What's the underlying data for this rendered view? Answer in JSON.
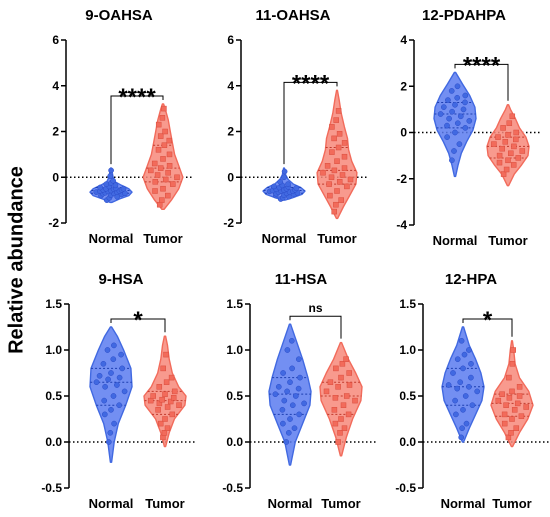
{
  "figure": {
    "ylabel": "Relative abundance"
  },
  "colors": {
    "normal": "#4169E1",
    "tumor": "#F26B5B",
    "normal_fill": "#5B7BF0",
    "tumor_fill": "#F7887A"
  },
  "chart_data": [
    {
      "type": "violin",
      "title": "9-OAHSA",
      "categories": [
        "Normal",
        "Tumor"
      ],
      "ylim": [
        -2,
        6
      ],
      "yticks": [
        "-2",
        "0",
        "2",
        "4",
        "6"
      ],
      "ytick_values": [
        -2,
        0,
        2,
        4,
        6
      ],
      "significance": "****",
      "reference_line": 0,
      "series": [
        {
          "category": "Normal",
          "min": -1.1,
          "max": 0.4,
          "profile": [
            [
              -1.1,
              0.05
            ],
            [
              -0.95,
              0.4
            ],
            [
              -0.8,
              0.85
            ],
            [
              -0.65,
              1.0
            ],
            [
              -0.5,
              0.85
            ],
            [
              -0.35,
              0.5
            ],
            [
              -0.2,
              0.2
            ],
            [
              0.0,
              0.1
            ],
            [
              0.2,
              0.06
            ],
            [
              0.4,
              0.02
            ]
          ],
          "values": [
            -1.0,
            -0.9,
            -0.85,
            -0.8,
            -0.78,
            -0.75,
            -0.72,
            -0.7,
            -0.7,
            -0.68,
            -0.65,
            -0.65,
            -0.62,
            -0.6,
            -0.6,
            -0.58,
            -0.55,
            -0.55,
            -0.52,
            -0.5,
            -0.5,
            -0.48,
            -0.45,
            -0.4,
            -0.35,
            -0.3,
            -0.25,
            -0.15,
            0.05,
            0.3
          ]
        },
        {
          "category": "Tumor",
          "min": -1.4,
          "max": 3.2,
          "profile": [
            [
              -1.4,
              0.05
            ],
            [
              -1.0,
              0.4
            ],
            [
              -0.5,
              0.75
            ],
            [
              0.0,
              0.95
            ],
            [
              0.5,
              0.75
            ],
            [
              1.0,
              0.55
            ],
            [
              1.5,
              0.45
            ],
            [
              2.0,
              0.35
            ],
            [
              2.5,
              0.25
            ],
            [
              3.0,
              0.1
            ],
            [
              3.2,
              0.03
            ]
          ],
          "values": [
            -1.2,
            -1.0,
            -0.8,
            -0.6,
            -0.5,
            -0.3,
            -0.2,
            -0.1,
            0.0,
            0.1,
            0.2,
            0.3,
            0.4,
            0.5,
            0.6,
            0.8,
            1.0,
            1.2,
            1.4,
            1.6,
            1.8,
            2.0,
            2.3,
            2.6,
            3.0
          ]
        }
      ]
    },
    {
      "type": "violin",
      "title": "11-OAHSA",
      "categories": [
        "Normal",
        "Tumor"
      ],
      "ylim": [
        -2,
        6
      ],
      "yticks": [
        "-2",
        "0",
        "2",
        "4",
        "6"
      ],
      "ytick_values": [
        -2,
        0,
        2,
        4,
        6
      ],
      "significance": "****",
      "reference_line": 0,
      "series": [
        {
          "category": "Normal",
          "min": -1.0,
          "max": 0.4,
          "profile": [
            [
              -1.0,
              0.05
            ],
            [
              -0.9,
              0.4
            ],
            [
              -0.75,
              0.85
            ],
            [
              -0.6,
              1.0
            ],
            [
              -0.45,
              0.8
            ],
            [
              -0.3,
              0.45
            ],
            [
              -0.1,
              0.2
            ],
            [
              0.1,
              0.08
            ],
            [
              0.4,
              0.02
            ]
          ],
          "values": [
            -0.95,
            -0.9,
            -0.85,
            -0.8,
            -0.78,
            -0.75,
            -0.72,
            -0.7,
            -0.68,
            -0.66,
            -0.65,
            -0.62,
            -0.6,
            -0.6,
            -0.58,
            -0.56,
            -0.55,
            -0.52,
            -0.5,
            -0.48,
            -0.45,
            -0.42,
            -0.4,
            -0.35,
            -0.3,
            -0.2,
            0.0,
            0.25
          ]
        },
        {
          "category": "Tumor",
          "min": -1.8,
          "max": 3.8,
          "profile": [
            [
              -1.8,
              0.03
            ],
            [
              -1.3,
              0.3
            ],
            [
              -0.8,
              0.6
            ],
            [
              -0.3,
              0.9
            ],
            [
              0.2,
              0.95
            ],
            [
              0.7,
              0.7
            ],
            [
              1.2,
              0.55
            ],
            [
              1.7,
              0.5
            ],
            [
              2.2,
              0.35
            ],
            [
              2.8,
              0.2
            ],
            [
              3.4,
              0.1
            ],
            [
              3.8,
              0.02
            ]
          ],
          "values": [
            -1.5,
            -1.2,
            -1.0,
            -0.8,
            -0.6,
            -0.4,
            -0.3,
            -0.2,
            -0.1,
            0.0,
            0.1,
            0.2,
            0.3,
            0.4,
            0.5,
            0.7,
            0.9,
            1.1,
            1.3,
            1.5,
            1.7,
            1.9,
            2.2,
            2.5,
            2.9
          ]
        }
      ]
    },
    {
      "type": "violin",
      "title": "12-PDAHPA",
      "categories": [
        "Normal",
        "Tumor"
      ],
      "ylim": [
        -4,
        4
      ],
      "yticks": [
        "-4",
        "-2",
        "0",
        "2",
        "4"
      ],
      "ytick_values": [
        -4,
        -2,
        0,
        2,
        4
      ],
      "significance": "****",
      "reference_line": 0,
      "series": [
        {
          "category": "Normal",
          "min": -1.9,
          "max": 2.6,
          "profile": [
            [
              -1.9,
              0.03
            ],
            [
              -1.4,
              0.15
            ],
            [
              -0.9,
              0.3
            ],
            [
              -0.4,
              0.55
            ],
            [
              0.1,
              0.85
            ],
            [
              0.6,
              1.0
            ],
            [
              1.1,
              0.95
            ],
            [
              1.6,
              0.7
            ],
            [
              2.1,
              0.35
            ],
            [
              2.6,
              0.03
            ]
          ],
          "values": [
            -1.2,
            -0.8,
            -0.5,
            -0.2,
            0.0,
            0.2,
            0.3,
            0.4,
            0.5,
            0.6,
            0.7,
            0.8,
            0.9,
            1.0,
            1.1,
            1.2,
            1.3,
            1.4,
            1.5,
            1.6,
            1.8,
            2.0
          ]
        },
        {
          "category": "Tumor",
          "min": -2.3,
          "max": 1.2,
          "profile": [
            [
              -2.3,
              0.03
            ],
            [
              -1.8,
              0.3
            ],
            [
              -1.4,
              0.65
            ],
            [
              -1.0,
              0.95
            ],
            [
              -0.6,
              1.0
            ],
            [
              -0.2,
              0.85
            ],
            [
              0.2,
              0.55
            ],
            [
              0.6,
              0.35
            ],
            [
              1.0,
              0.12
            ],
            [
              1.2,
              0.03
            ]
          ],
          "values": [
            -1.8,
            -1.6,
            -1.4,
            -1.3,
            -1.2,
            -1.1,
            -1.0,
            -0.9,
            -0.8,
            -0.7,
            -0.6,
            -0.5,
            -0.4,
            -0.3,
            -0.2,
            -0.1,
            0.0,
            0.2,
            0.4,
            0.7
          ]
        }
      ]
    },
    {
      "type": "violin",
      "title": "9-HSA",
      "categories": [
        "Normal",
        "Tumor"
      ],
      "ylim": [
        -0.5,
        1.5
      ],
      "yticks": [
        "-0.5",
        "0.0",
        "0.5",
        "1.0",
        "1.5"
      ],
      "ytick_values": [
        -0.5,
        0,
        0.5,
        1,
        1.5
      ],
      "significance": "*",
      "reference_line": 0,
      "series": [
        {
          "category": "Normal",
          "min": -0.22,
          "max": 1.25,
          "profile": [
            [
              -0.22,
              0.03
            ],
            [
              0.0,
              0.15
            ],
            [
              0.2,
              0.35
            ],
            [
              0.4,
              0.7
            ],
            [
              0.6,
              1.0
            ],
            [
              0.8,
              0.95
            ],
            [
              1.0,
              0.6
            ],
            [
              1.15,
              0.3
            ],
            [
              1.25,
              0.03
            ]
          ],
          "values": [
            0.0,
            0.1,
            0.2,
            0.3,
            0.35,
            0.4,
            0.45,
            0.5,
            0.55,
            0.6,
            0.62,
            0.65,
            0.68,
            0.7,
            0.72,
            0.75,
            0.8,
            0.85,
            0.9,
            0.95,
            1.0,
            1.05
          ]
        },
        {
          "category": "Tumor",
          "min": -0.05,
          "max": 1.15,
          "profile": [
            [
              -0.05,
              0.03
            ],
            [
              0.1,
              0.2
            ],
            [
              0.25,
              0.45
            ],
            [
              0.4,
              0.95
            ],
            [
              0.5,
              1.0
            ],
            [
              0.6,
              0.65
            ],
            [
              0.75,
              0.35
            ],
            [
              0.9,
              0.2
            ],
            [
              1.05,
              0.12
            ],
            [
              1.15,
              0.03
            ]
          ],
          "values": [
            0.05,
            0.1,
            0.15,
            0.2,
            0.25,
            0.3,
            0.35,
            0.38,
            0.4,
            0.42,
            0.44,
            0.45,
            0.46,
            0.48,
            0.5,
            0.52,
            0.55,
            0.6,
            0.65,
            0.7,
            0.8,
            0.95
          ]
        }
      ]
    },
    {
      "type": "violin",
      "title": "11-HSA",
      "categories": [
        "Normal",
        "Tumor"
      ],
      "ylim": [
        -0.5,
        1.5
      ],
      "yticks": [
        "-0.5",
        "0.0",
        "0.5",
        "1.0",
        "1.5"
      ],
      "ytick_values": [
        -0.5,
        0,
        0.5,
        1,
        1.5
      ],
      "significance": "ns",
      "reference_line": 0,
      "series": [
        {
          "category": "Normal",
          "min": -0.25,
          "max": 1.28,
          "profile": [
            [
              -0.25,
              0.03
            ],
            [
              0.0,
              0.25
            ],
            [
              0.2,
              0.6
            ],
            [
              0.4,
              0.95
            ],
            [
              0.55,
              1.0
            ],
            [
              0.7,
              0.85
            ],
            [
              0.9,
              0.6
            ],
            [
              1.1,
              0.3
            ],
            [
              1.28,
              0.03
            ]
          ],
          "values": [
            0.0,
            0.1,
            0.15,
            0.2,
            0.25,
            0.3,
            0.35,
            0.4,
            0.42,
            0.45,
            0.5,
            0.52,
            0.55,
            0.58,
            0.6,
            0.65,
            0.7,
            0.75,
            0.8,
            0.9,
            1.0,
            1.1
          ]
        },
        {
          "category": "Tumor",
          "min": -0.15,
          "max": 1.08,
          "profile": [
            [
              -0.15,
              0.03
            ],
            [
              0.05,
              0.25
            ],
            [
              0.25,
              0.55
            ],
            [
              0.45,
              0.95
            ],
            [
              0.6,
              1.0
            ],
            [
              0.75,
              0.7
            ],
            [
              0.9,
              0.35
            ],
            [
              1.08,
              0.03
            ]
          ],
          "values": [
            0.0,
            0.1,
            0.15,
            0.2,
            0.25,
            0.3,
            0.35,
            0.4,
            0.45,
            0.48,
            0.5,
            0.55,
            0.6,
            0.62,
            0.65,
            0.7,
            0.75,
            0.8,
            0.85,
            0.9
          ]
        }
      ]
    },
    {
      "type": "violin",
      "title": "12-HPA",
      "categories": [
        "Normal",
        "Tumor"
      ],
      "ylim": [
        -0.5,
        1.5
      ],
      "yticks": [
        "-0.5",
        "0.0",
        "0.5",
        "1.0",
        "1.5"
      ],
      "ytick_values": [
        -0.5,
        0,
        0.5,
        1,
        1.5
      ],
      "significance": "*",
      "reference_line": 0,
      "series": [
        {
          "category": "Normal",
          "min": 0.0,
          "max": 1.25,
          "profile": [
            [
              0.0,
              0.03
            ],
            [
              0.15,
              0.3
            ],
            [
              0.3,
              0.6
            ],
            [
              0.45,
              0.9
            ],
            [
              0.6,
              1.0
            ],
            [
              0.75,
              0.85
            ],
            [
              0.9,
              0.6
            ],
            [
              1.05,
              0.3
            ],
            [
              1.25,
              0.03
            ]
          ],
          "values": [
            0.05,
            0.15,
            0.2,
            0.3,
            0.35,
            0.4,
            0.45,
            0.5,
            0.55,
            0.58,
            0.6,
            0.62,
            0.65,
            0.7,
            0.75,
            0.8,
            0.85,
            0.9,
            0.95,
            1.0,
            1.1
          ]
        },
        {
          "category": "Tumor",
          "min": -0.05,
          "max": 1.1,
          "profile": [
            [
              -0.05,
              0.03
            ],
            [
              0.1,
              0.35
            ],
            [
              0.25,
              0.75
            ],
            [
              0.4,
              1.0
            ],
            [
              0.55,
              0.8
            ],
            [
              0.7,
              0.35
            ],
            [
              0.85,
              0.15
            ],
            [
              1.0,
              0.08
            ],
            [
              1.1,
              0.02
            ]
          ],
          "values": [
            0.05,
            0.1,
            0.15,
            0.2,
            0.25,
            0.28,
            0.3,
            0.35,
            0.38,
            0.4,
            0.42,
            0.45,
            0.48,
            0.5,
            0.52,
            0.55,
            0.6,
            0.7,
            0.85,
            1.0
          ]
        }
      ]
    }
  ]
}
